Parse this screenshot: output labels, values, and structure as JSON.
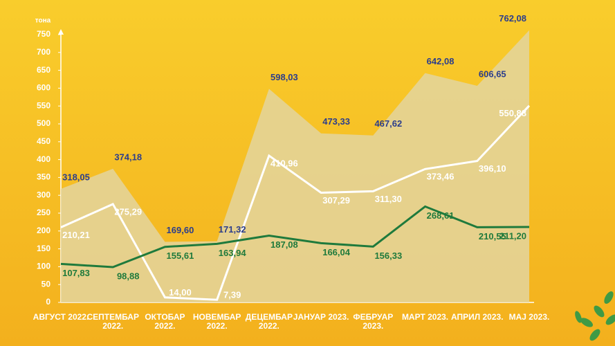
{
  "chart_data": {
    "type": "line",
    "y_label": "тона",
    "categories": [
      "АВГУСТ 2022.",
      "СЕПТЕМБАР 2022.",
      "ОКТОБАР 2022.",
      "НОВЕМБАР 2022.",
      "ДЕЦЕМБАР 2022.",
      "ЈАНУАР 2023.",
      "ФЕБРУАР 2023.",
      "МАРТ 2023.",
      "АПРИЛ 2023.",
      "МАЈ 2023."
    ],
    "series": [
      {
        "color": "#e3d59f",
        "label_color": "#2b3d8c",
        "fill": true,
        "values": [
          318.05,
          374.18,
          169.6,
          171.32,
          598.03,
          473.33,
          467.62,
          642.08,
          606.65,
          762.08
        ],
        "value_labels": [
          "318,05",
          "374,18",
          "169,60",
          "171,32",
          "598,03",
          "473,33",
          "467,62",
          "642,08",
          "606,65",
          "762,08"
        ]
      },
      {
        "color": "#ffffff",
        "label_color": "#ffffff",
        "fill": false,
        "values": [
          210.21,
          275.29,
          14.0,
          7.39,
          410.96,
          307.29,
          311.3,
          373.46,
          396.1,
          550.88
        ],
        "value_labels": [
          "210,21",
          "275,29",
          "14,00",
          "7,39",
          "410,96",
          "307,29",
          "311,30",
          "373,46",
          "396,10",
          "550,88"
        ]
      },
      {
        "color": "#1f7a3c",
        "label_color": "#1f7a3c",
        "fill": false,
        "values": [
          107.83,
          98.88,
          155.61,
          163.94,
          187.08,
          166.04,
          156.33,
          268.61,
          210.55,
          211.2
        ],
        "value_labels": [
          "107,83",
          "98,88",
          "155,61",
          "163,94",
          "187,08",
          "166,04",
          "156,33",
          "268,61",
          "210,55",
          "211,20"
        ]
      }
    ],
    "ylim": [
      0,
      750
    ],
    "yticks": [
      0,
      50,
      100,
      150,
      200,
      250,
      300,
      350,
      400,
      450,
      500,
      550,
      600,
      650,
      700,
      750
    ]
  }
}
